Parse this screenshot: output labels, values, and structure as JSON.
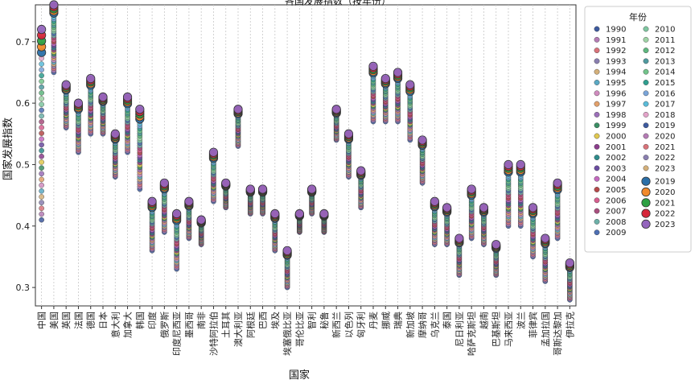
{
  "chart_data": {
    "type": "scatter",
    "title": "各国发展指数（按年份）",
    "xlabel": "国家",
    "ylabel": "国家发展指数",
    "ylim": [
      0.27,
      0.76
    ],
    "yticks": [
      0.3,
      0.4,
      0.5,
      0.6,
      0.7
    ],
    "grid": "vertical dotted",
    "legend": {
      "title": "年份",
      "placement": "outside-right",
      "columns": 2,
      "entries": [
        "1990",
        "1991",
        "1992",
        "1993",
        "1994",
        "1995",
        "1996",
        "1997",
        "1998",
        "1999",
        "2000",
        "2001",
        "2002",
        "2003",
        "2004",
        "2005",
        "2006",
        "2007",
        "2008",
        "2009",
        "2010",
        "2011",
        "2012",
        "2013",
        "2014",
        "2015",
        "2016",
        "2017",
        "2018",
        "2019",
        "2020",
        "2021",
        "2022",
        "2023",
        "2019",
        "2020",
        "2021",
        "2022",
        "2023"
      ],
      "big_entries": [
        "2019",
        "2020",
        "2021",
        "2022",
        "2023"
      ]
    },
    "categories": [
      "中国",
      "美国",
      "英国",
      "法国",
      "德国",
      "日本",
      "意大利",
      "加拿大",
      "韩国",
      "印度",
      "俄罗斯",
      "印度尼西亚",
      "墨西哥",
      "南非",
      "沙特阿拉伯",
      "土耳其",
      "澳大利亚",
      "阿根廷",
      "巴西",
      "埃及",
      "埃塞俄比亚",
      "哥伦比亚",
      "智利",
      "秘鲁",
      "新西兰",
      "以色列",
      "匈牙利",
      "丹麦",
      "挪威",
      "瑞典",
      "新加坡",
      "摩纳哥",
      "乌克兰",
      "泰国",
      "尼日利亚",
      "哈萨克斯坦",
      "越南",
      "巴基斯坦",
      "马来西亚",
      "波兰",
      "菲律宾",
      "孟加拉国",
      "哥斯达黎加",
      "伊拉克"
    ],
    "series_ranges": {
      "description": "per-country lowest and highest index over 1990-2023 (data units)",
      "min": [
        0.41,
        0.65,
        0.56,
        0.52,
        0.55,
        0.55,
        0.48,
        0.52,
        0.46,
        0.36,
        0.39,
        0.33,
        0.38,
        0.37,
        0.44,
        0.43,
        0.53,
        0.42,
        0.42,
        0.36,
        0.3,
        0.39,
        0.42,
        0.39,
        0.54,
        0.48,
        0.43,
        0.57,
        0.57,
        0.57,
        0.54,
        0.47,
        0.37,
        0.37,
        0.32,
        0.38,
        0.37,
        0.32,
        0.4,
        0.4,
        0.35,
        0.31,
        0.38,
        0.28
      ],
      "max": [
        0.72,
        0.76,
        0.63,
        0.6,
        0.64,
        0.61,
        0.55,
        0.61,
        0.59,
        0.44,
        0.47,
        0.42,
        0.44,
        0.41,
        0.52,
        0.47,
        0.59,
        0.46,
        0.46,
        0.42,
        0.36,
        0.42,
        0.46,
        0.42,
        0.59,
        0.55,
        0.49,
        0.66,
        0.64,
        0.65,
        0.63,
        0.54,
        0.44,
        0.43,
        0.38,
        0.46,
        0.43,
        0.37,
        0.5,
        0.5,
        0.43,
        0.38,
        0.47,
        0.34
      ]
    }
  }
}
